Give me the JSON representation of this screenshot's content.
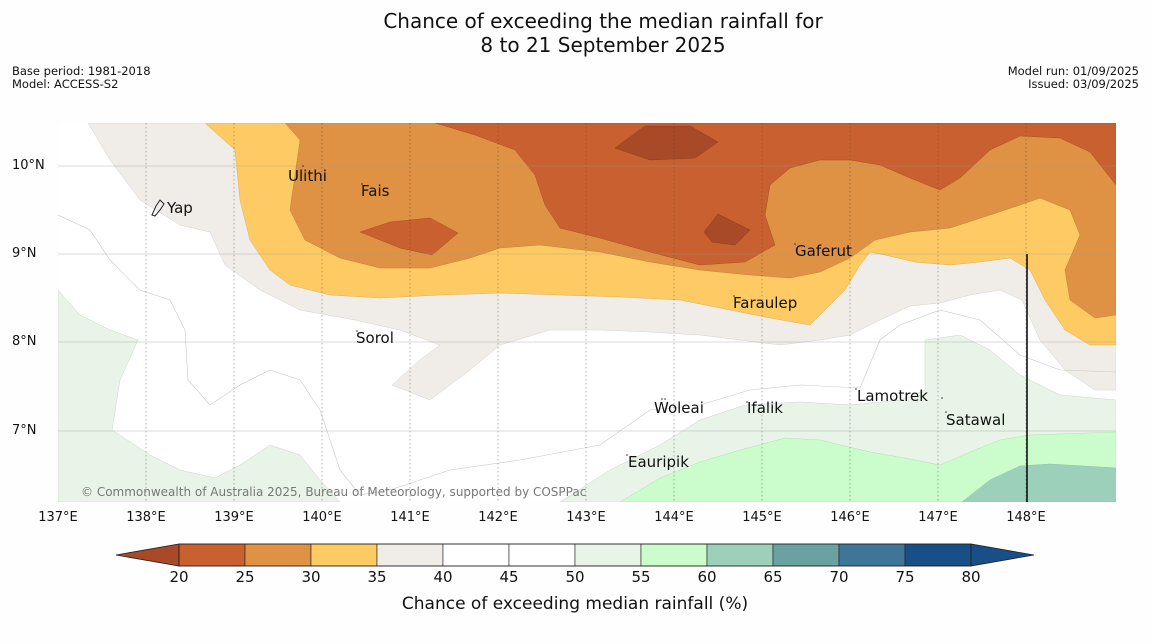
{
  "title": {
    "line1": "Chance of exceeding the median rainfall for",
    "line2": "8 to 21 September 2025"
  },
  "meta_left": {
    "base_period": "Base period: 1981-2018",
    "model": "Model: ACCESS-S2"
  },
  "meta_right": {
    "model_run": "Model run: 01/09/2025",
    "issued": "Issued: 03/09/2025"
  },
  "copyright": "© Commonwealth of Australia 2025, Bureau of Meteorology, supported by COSPPac",
  "longitude_labels": [
    "137°E",
    "138°E",
    "139°E",
    "140°E",
    "141°E",
    "142°E",
    "143°E",
    "144°E",
    "145°E",
    "146°E",
    "147°E",
    "148°E"
  ],
  "latitude_labels": [
    "10°N",
    "9°N",
    "8°N",
    "7°N"
  ],
  "places": {
    "yap": "Yap",
    "ulithi": "Ulithi",
    "fais": "Fais",
    "gaferut": "Gaferut",
    "faraulep": "Faraulep",
    "sorol": "Sorol",
    "woleai": "Woleai",
    "ifalik": "Ifalik",
    "lamotrek": "Lamotrek",
    "satawal": "Satawal",
    "eauripik": "Eauripik"
  },
  "colorbar": {
    "label": "Chance of exceeding median rainfall (%)",
    "ticks": [
      "20",
      "25",
      "30",
      "35",
      "40",
      "45",
      "50",
      "55",
      "60",
      "65",
      "70",
      "75",
      "80"
    ],
    "colors": [
      "#a84a27",
      "#c9602f",
      "#df9244",
      "#fdca63",
      "#f0ece8",
      "#ffffff",
      "#ffffff",
      "#e9f4e9",
      "#cbfccb",
      "#9dd0bb",
      "#6aa2a2",
      "#3f7697",
      "#174f86"
    ]
  }
}
